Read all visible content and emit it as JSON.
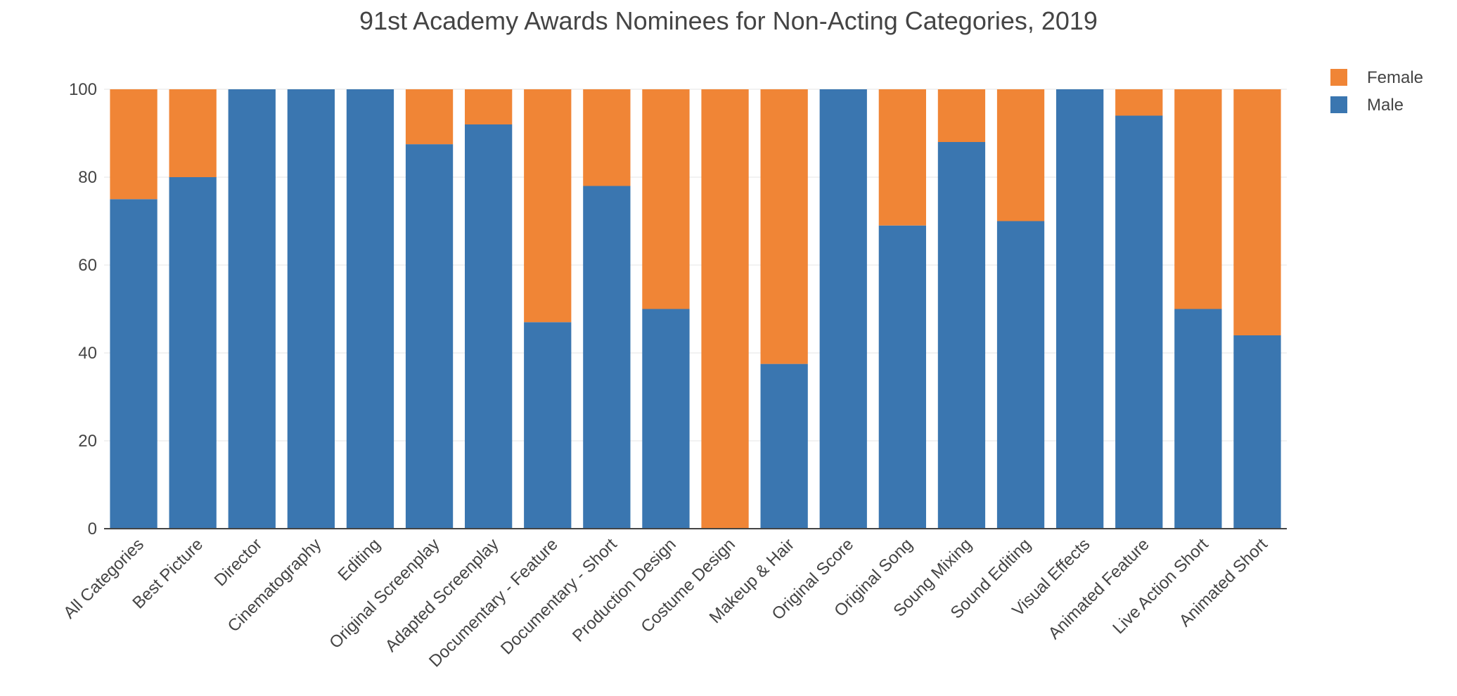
{
  "chart_data": {
    "type": "bar",
    "stacked": true,
    "title": "91st Academy Awards Nominees for Non-Acting Categories, 2019",
    "xlabel": "",
    "ylabel": "",
    "ylim": [
      0,
      100
    ],
    "yticks": [
      0,
      20,
      40,
      60,
      80,
      100
    ],
    "grid": true,
    "legend_position": "top-right",
    "categories": [
      "All Categories",
      "Best Picture",
      "Director",
      "Cinematography",
      "Editing",
      "Original Screenplay",
      "Adapted Screenplay",
      "Documentary - Feature",
      "Documentary - Short",
      "Production Design",
      "Costume Design",
      "Makeup & Hair",
      "Original Score",
      "Original Song",
      "Soung Mixing",
      "Sound Editing",
      "Visual Effects",
      "Animated Feature",
      "Live Action Short",
      "Animated Short"
    ],
    "series": [
      {
        "name": "Male",
        "color": "#3a76b0",
        "values": [
          75,
          80,
          100,
          100,
          100,
          87.5,
          92,
          47,
          78,
          50,
          0,
          37.5,
          100,
          69,
          88,
          70,
          100,
          94,
          50,
          44
        ]
      },
      {
        "name": "Female",
        "color": "#f08536",
        "values": [
          25,
          20,
          0,
          0,
          0,
          12.5,
          8,
          53,
          22,
          50,
          100,
          62.5,
          0,
          31,
          12,
          30,
          0,
          6,
          50,
          56
        ]
      }
    ],
    "legend_order": [
      "Female",
      "Male"
    ]
  }
}
